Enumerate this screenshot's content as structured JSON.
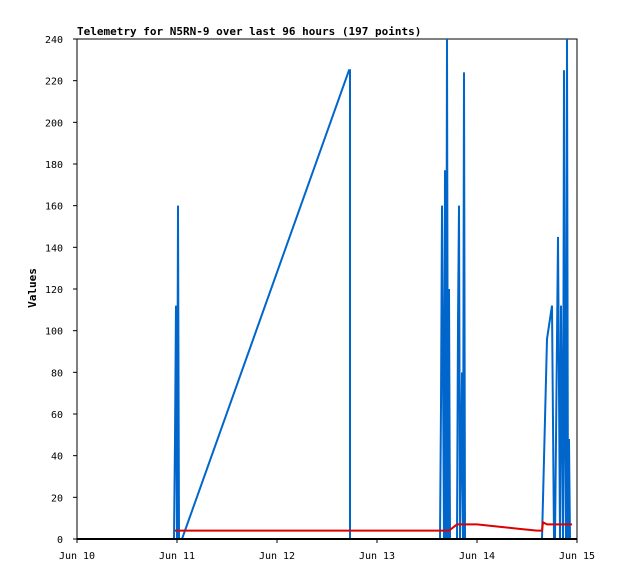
{
  "chart_data": {
    "type": "line",
    "title": "Telemetry for N5RN-9 over last 96 hours (197 points)",
    "xlabel": "",
    "ylabel": "Values",
    "x_ticks": [
      "Jun 10",
      "Jun 11",
      "Jun 12",
      "Jun 13",
      "Jun 14",
      "Jun 15"
    ],
    "xlim": [
      10.0,
      15.0
    ],
    "ylim": [
      0,
      240
    ],
    "y_ticks": [
      0,
      20,
      40,
      60,
      80,
      100,
      120,
      140,
      160,
      180,
      200,
      220,
      240
    ],
    "grid": false,
    "colors": {
      "series1": "#0066cc",
      "series2": "#dd0000",
      "series3": "#000000"
    },
    "series": [
      {
        "x": [
          10.97,
          10.98,
          10.99,
          11.0,
          11.01,
          11.02,
          11.03,
          11.05,
          12.72,
          12.73,
          12.73,
          13.63,
          13.64,
          13.65,
          13.67,
          13.68,
          13.69,
          13.7,
          13.71,
          13.72,
          13.73,
          13.74,
          13.75,
          13.8,
          13.81,
          13.82,
          13.83,
          13.85,
          13.86,
          13.87,
          13.88,
          13.89,
          14.65,
          14.7,
          14.75,
          14.77,
          14.78,
          14.8,
          14.81,
          14.83,
          14.84,
          14.86,
          14.87,
          14.88,
          14.89,
          14.9,
          14.91,
          14.92,
          14.93,
          14.94,
          14.95
        ],
        "values": [
          0,
          48,
          112,
          0,
          160,
          0,
          0,
          0,
          225,
          225,
          0,
          0,
          64,
          160,
          0,
          177,
          0,
          240,
          0,
          120,
          0,
          0,
          0,
          0,
          104,
          160,
          0,
          80,
          0,
          224,
          0,
          0,
          0,
          96,
          112,
          0,
          0,
          96,
          145,
          0,
          112,
          0,
          225,
          48,
          0,
          240,
          0,
          48,
          0,
          0,
          0
        ]
      },
      {
        "x": [
          10.98,
          11.05,
          11.5,
          12.0,
          12.5,
          13.0,
          13.5,
          13.72,
          13.8,
          13.85,
          13.9,
          14.0,
          14.2,
          14.4,
          14.6,
          14.65,
          14.66,
          14.7,
          14.8,
          14.9,
          14.95
        ],
        "values": [
          4,
          4,
          4,
          4,
          4,
          4,
          4,
          4,
          7,
          7,
          7,
          7,
          6,
          5,
          4,
          4,
          8,
          7,
          7,
          7,
          7
        ]
      },
      {
        "x": [
          10.0,
          15.0
        ],
        "values": [
          0,
          0
        ]
      }
    ]
  }
}
